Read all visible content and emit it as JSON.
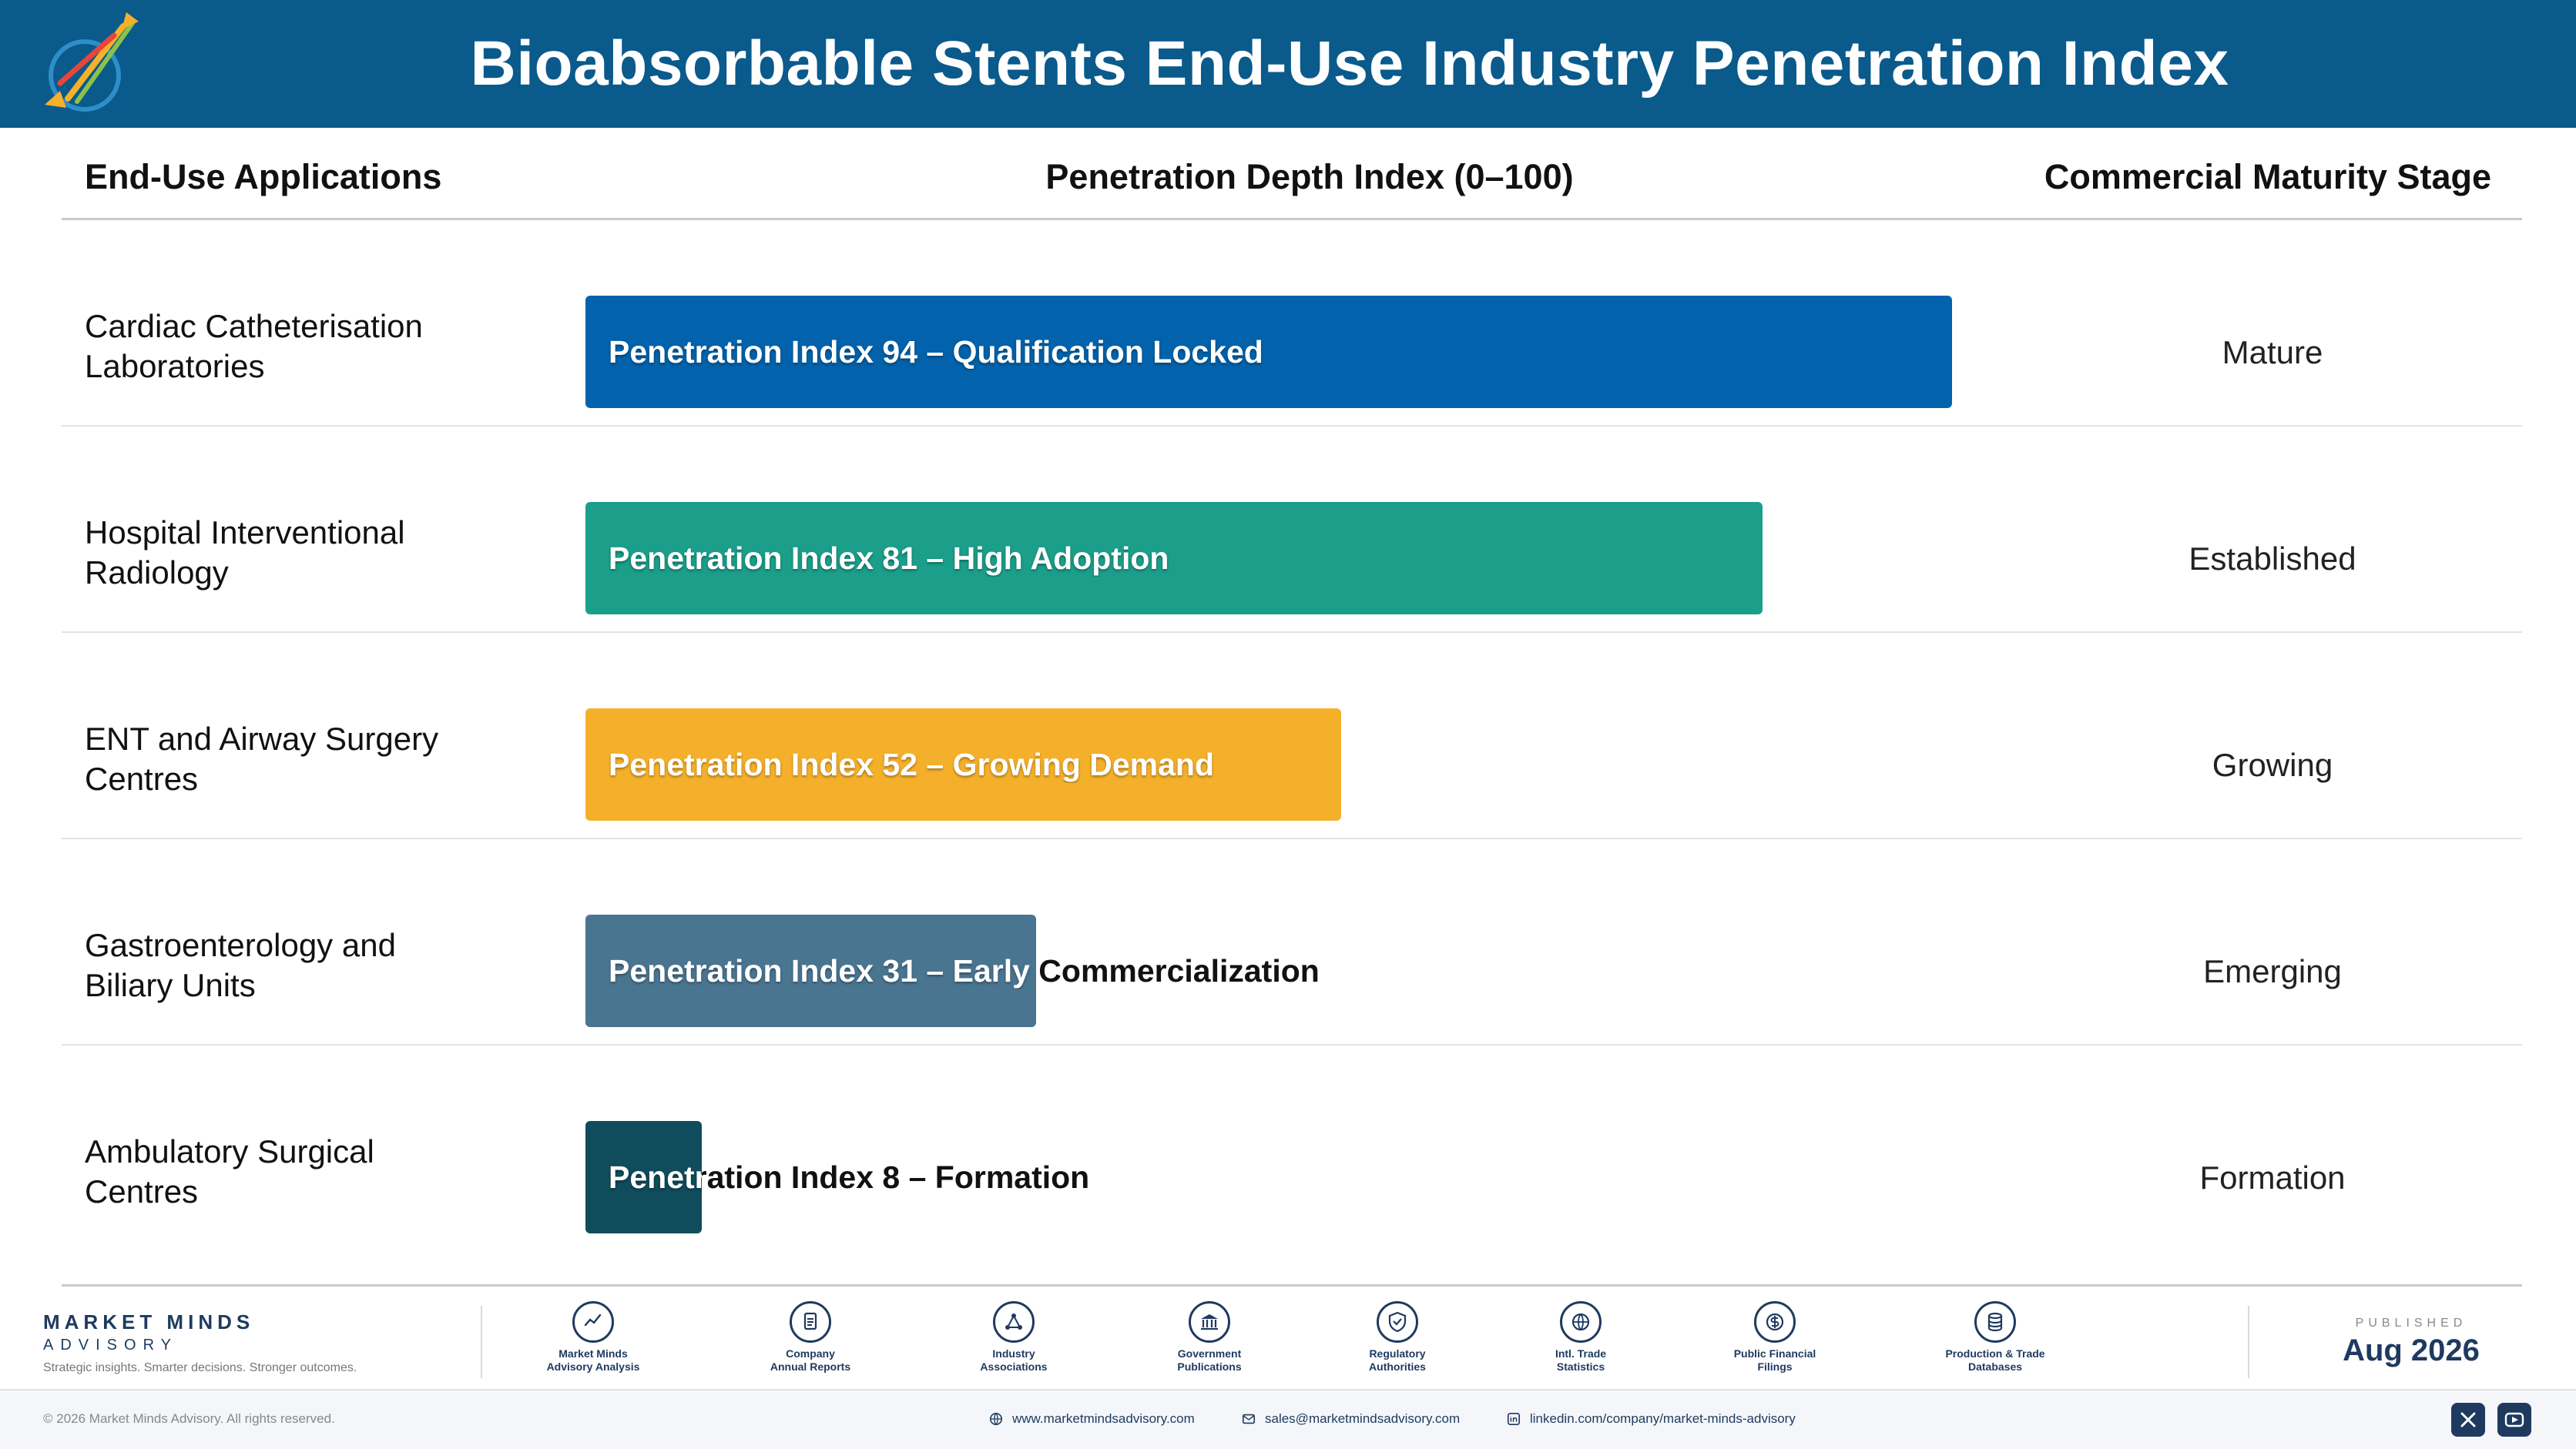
{
  "header": {
    "title": "Bioabsorbable Stents End-Use Industry Penetration Index",
    "logo_icon": "market-minds-logo"
  },
  "columns": {
    "applications": "End-Use Applications",
    "depth": "Penetration Depth Index (0–100)",
    "maturity": "Commercial Maturity Stage"
  },
  "chart_data": {
    "type": "bar",
    "orientation": "horizontal",
    "xlim": [
      0,
      100
    ],
    "categories": [
      "Cardiac Catheterisation Laboratories",
      "Hospital Interventional Radiology",
      "ENT and Airway Surgery Centres",
      "Gastroenterology and Biliary Units",
      "Ambulatory Surgical Centres"
    ],
    "values": [
      94,
      81,
      52,
      31,
      8
    ],
    "rows": [
      {
        "label_lines": [
          "Cardiac Catheterisation",
          "Laboratories"
        ],
        "value": 94,
        "bar_label": "Penetration Index 94 – Qualification Locked",
        "stage": "Mature",
        "color": "#0262ab"
      },
      {
        "label_lines": [
          "Hospital Interventional",
          "Radiology"
        ],
        "value": 81,
        "bar_label": "Penetration Index 81 – High Adoption",
        "stage": "Established",
        "color": "#1b9e8a"
      },
      {
        "label_lines": [
          "ENT and Airway Surgery",
          "Centres"
        ],
        "value": 52,
        "bar_label": "Penetration Index 52 – Growing Demand",
        "stage": "Growing",
        "color": "#f5b02b"
      },
      {
        "label_lines": [
          "Gastroenterology and",
          "Biliary Units"
        ],
        "value": 31,
        "bar_label": "Penetration Index 31 – Early Commercialization",
        "stage": "Emerging",
        "color": "#4a7591"
      },
      {
        "label_lines": [
          "Ambulatory Surgical",
          "Centres"
        ],
        "value": 8,
        "bar_label": "Penetration Index 8 – Formation",
        "stage": "Formation",
        "color": "#0f4c5c"
      }
    ]
  },
  "footer": {
    "brand_name": "MARKET MINDS",
    "brand_sub": "ADVISORY",
    "brand_tag": "Strategic insights. Smarter decisions. Stronger outcomes.",
    "sources": [
      {
        "line1": "Market Minds",
        "line2": "Advisory Analysis",
        "icon": "chart-line-icon"
      },
      {
        "line1": "Company",
        "line2": "Annual Reports",
        "icon": "document-icon"
      },
      {
        "line1": "Industry",
        "line2": "Associations",
        "icon": "network-icon"
      },
      {
        "line1": "Government",
        "line2": "Publications",
        "icon": "building-icon"
      },
      {
        "line1": "Regulatory",
        "line2": "Authorities",
        "icon": "shield-icon"
      },
      {
        "line1": "Intl. Trade",
        "line2": "Statistics",
        "icon": "globe-icon"
      },
      {
        "line1": "Public Financial",
        "line2": "Filings",
        "icon": "dollar-icon"
      },
      {
        "line1": "Production & Trade",
        "line2": "Databases",
        "icon": "database-icon"
      }
    ],
    "published_label": "PUBLISHED",
    "published_date": "Aug 2026",
    "copyright": "© 2026 Market Minds Advisory. All rights reserved.",
    "website": "www.marketmindsadvisory.com",
    "email": "sales@marketmindsadvisory.com",
    "linkedin": "linkedin.com/company/market-minds-advisory"
  }
}
